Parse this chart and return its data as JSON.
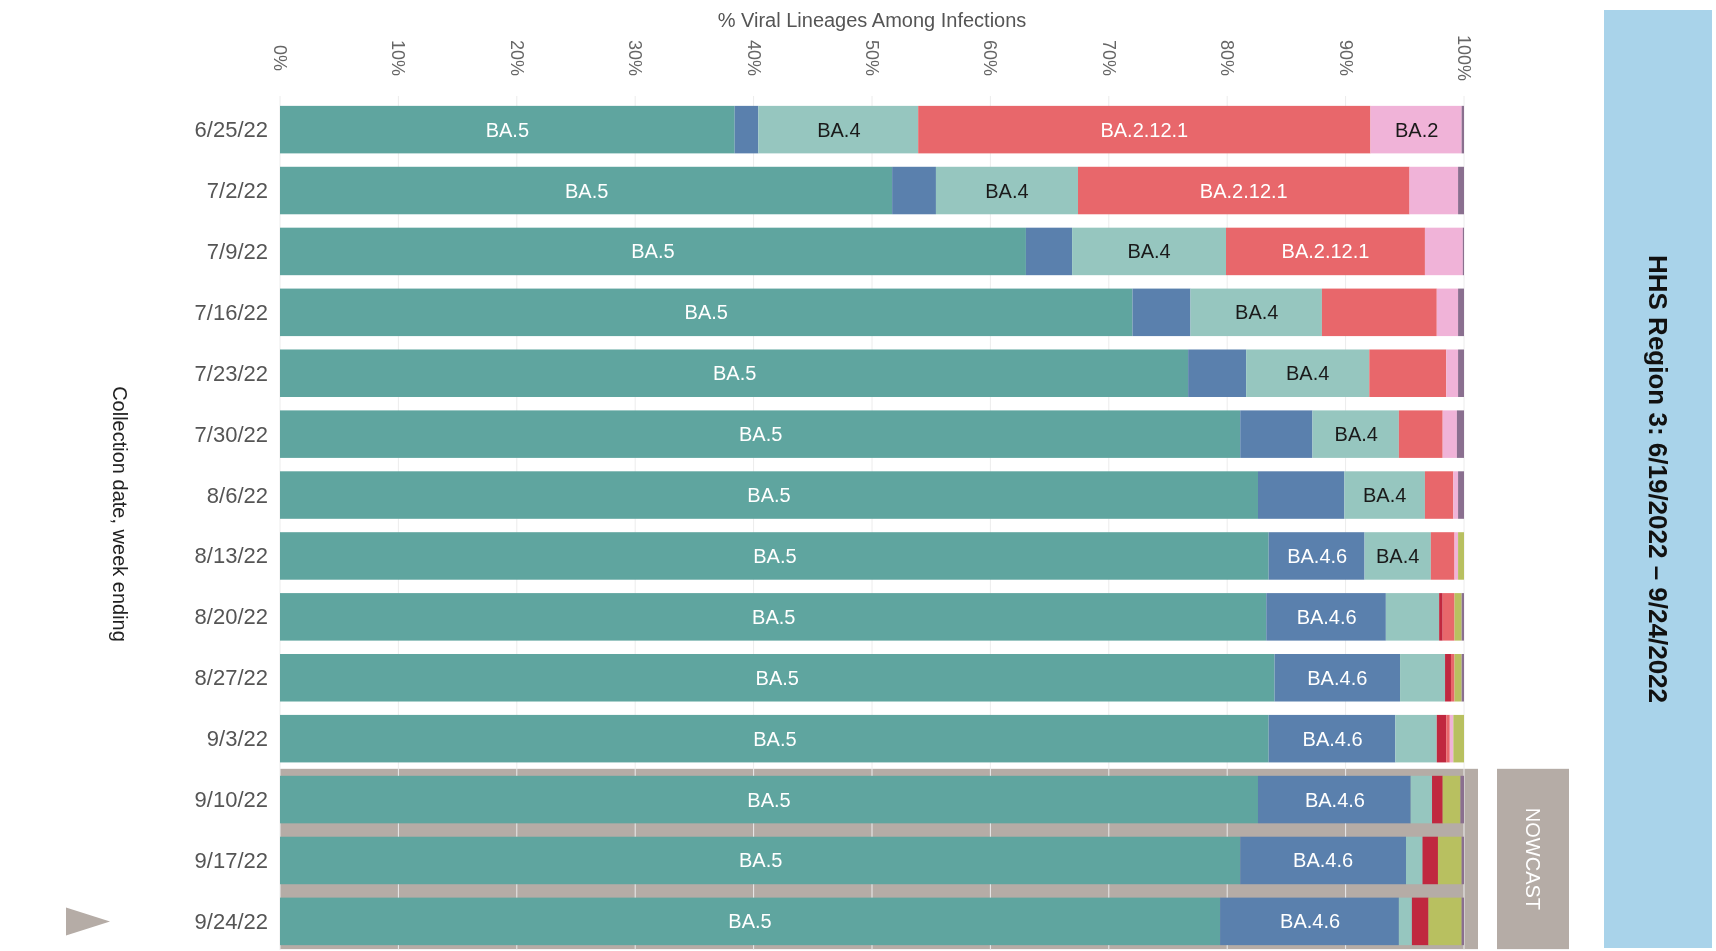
{
  "chart_data": {
    "type": "bar",
    "orientation": "horizontal",
    "stacked": true,
    "title": "HHS Region 3: 6/19/2022 – 9/24/2022",
    "xlabel": "% Viral Lineages Among Infections",
    "ylabel": "Collection date, week ending",
    "categories": [
      "6/25/22",
      "7/2/22",
      "7/9/22",
      "7/16/22",
      "7/23/22",
      "7/30/22",
      "8/6/22",
      "8/13/22",
      "8/20/22",
      "8/27/22",
      "9/3/22",
      "9/10/22",
      "9/17/22",
      "9/24/22"
    ],
    "series": [
      {
        "color": "#5fa59f",
        "values": [
          38.4,
          51.7,
          63.0,
          72.0,
          76.7,
          81.1,
          82.6,
          83.5,
          83.3,
          84.0,
          83.5,
          82.6,
          81.1,
          79.4
        ]
      },
      {
        "color": "#5a80ad",
        "values": [
          2.0,
          3.7,
          3.9,
          4.9,
          4.9,
          6.1,
          7.3,
          8.1,
          10.1,
          10.6,
          10.7,
          12.9,
          14.0,
          15.1
        ]
      },
      {
        "color": "#96c6bf",
        "values": [
          13.5,
          12.0,
          13.0,
          11.1,
          10.4,
          7.3,
          6.8,
          5.6,
          4.5,
          3.8,
          3.5,
          1.8,
          1.4,
          1.1
        ]
      },
      {
        "color": "#c0283f",
        "values": [
          0,
          0,
          0,
          0,
          0,
          0,
          0,
          0,
          0.3,
          0.5,
          0.8,
          0.9,
          1.3,
          1.4
        ]
      },
      {
        "color": "#e8676b",
        "values": [
          38.2,
          28.0,
          16.8,
          9.7,
          6.5,
          3.7,
          2.4,
          2.0,
          1.0,
          0.3,
          0.3,
          0,
          0,
          0
        ]
      },
      {
        "color": "#f0b3d8",
        "values": [
          7.7,
          4.1,
          3.2,
          1.8,
          1.0,
          1.2,
          0.4,
          0.3,
          0,
          0,
          0.3,
          0,
          0,
          0
        ]
      },
      {
        "color": "#b8c060",
        "values": [
          0,
          0,
          0,
          0,
          0,
          0,
          0,
          0.5,
          0.6,
          0.6,
          0.9,
          1.5,
          2.0,
          2.8
        ]
      },
      {
        "color": "#8a6f8f",
        "values": [
          0.2,
          0.5,
          0.1,
          0.5,
          0.5,
          0.6,
          0.5,
          0,
          0.2,
          0.2,
          0,
          0.3,
          0.2,
          0.2
        ]
      }
    ],
    "xlim": [
      0,
      100
    ],
    "xticks": [
      {
        "value": 0,
        "label": "0%"
      },
      {
        "value": 10,
        "label": "10%"
      },
      {
        "value": 20,
        "label": "20%"
      },
      {
        "value": 30,
        "label": "30%"
      },
      {
        "value": 40,
        "label": "40%"
      },
      {
        "value": 50,
        "label": "50%"
      },
      {
        "value": 60,
        "label": "60%"
      },
      {
        "value": 70,
        "label": "70%"
      },
      {
        "value": 80,
        "label": "80%"
      },
      {
        "value": 90,
        "label": "90%"
      },
      {
        "value": 100,
        "label": "100%"
      }
    ],
    "grid": "x",
    "annotations": [
      "NOWCAST",
      {
        "text": "BA.5",
        "x": 19.2,
        "y": "6/25/22"
      },
      {
        "text": "BA.5",
        "x": 25.9,
        "y": "7/2/22"
      },
      {
        "text": "BA.5",
        "x": 31.5,
        "y": "7/9/22"
      },
      {
        "text": "BA.5",
        "x": 36,
        "y": "7/16/22"
      },
      {
        "text": "BA.5",
        "x": 38.4,
        "y": "7/23/22"
      },
      {
        "text": "BA.5",
        "x": 40.6,
        "y": "7/30/22"
      },
      {
        "text": "BA.5",
        "x": 41.3,
        "y": "8/6/22"
      },
      {
        "text": "BA.5",
        "x": 41.8,
        "y": "8/13/22"
      },
      {
        "text": "BA.5",
        "x": 41.7,
        "y": "8/20/22"
      },
      {
        "text": "BA.5",
        "x": 42,
        "y": "8/27/22"
      },
      {
        "text": "BA.5",
        "x": 41.8,
        "y": "9/3/22"
      },
      {
        "text": "BA.5",
        "x": 41.3,
        "y": "9/10/22"
      },
      {
        "text": "BA.5",
        "x": 40.6,
        "y": "9/17/22"
      },
      {
        "text": "BA.5",
        "x": 39.7,
        "y": "9/24/22"
      },
      {
        "text": "BA.4",
        "x": 47.2,
        "y": "6/25/22"
      },
      {
        "text": "BA.4",
        "x": 61.4,
        "y": "7/2/22"
      },
      {
        "text": "BA.4",
        "x": 73.4,
        "y": "7/9/22"
      },
      {
        "text": "BA.4",
        "x": 82.5,
        "y": "7/16/22"
      },
      {
        "text": "BA.4",
        "x": 86.8,
        "y": "7/23/22"
      },
      {
        "text": "BA.4",
        "x": 90.9,
        "y": "7/30/22"
      },
      {
        "text": "BA.4",
        "x": 93.3,
        "y": "8/6/22"
      },
      {
        "text": "BA.4",
        "x": 94.4,
        "y": "8/13/22"
      },
      {
        "text": "BA.2.12.1",
        "x": 73,
        "y": "6/25/22"
      },
      {
        "text": "BA.2.12.1",
        "x": 81.4,
        "y": "7/2/22"
      },
      {
        "text": "BA.2.12.1",
        "x": 88.3,
        "y": "7/9/22"
      },
      {
        "text": "BA.2",
        "x": 96.0,
        "y": "6/25/22"
      },
      {
        "text": "BA.4.6",
        "x": 87.6,
        "y": "8/13/22"
      },
      {
        "text": "BA.4.6",
        "x": 88.4,
        "y": "8/20/22"
      },
      {
        "text": "BA.4.6",
        "x": 89.3,
        "y": "8/27/22"
      },
      {
        "text": "BA.4.6",
        "x": 88.9,
        "y": "9/3/22"
      },
      {
        "text": "BA.4.6",
        "x": 89.1,
        "y": "9/10/22"
      },
      {
        "text": "BA.4.6",
        "x": 88.1,
        "y": "9/17/22"
      },
      {
        "text": "BA.4.6",
        "x": 87.0,
        "y": "9/24/22"
      }
    ]
  }
}
